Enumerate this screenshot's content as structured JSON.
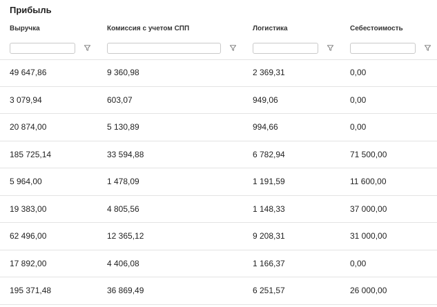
{
  "section": {
    "title": "Прибыль"
  },
  "columns": [
    {
      "label": "Выручка",
      "filter_value": ""
    },
    {
      "label": "Комиссия с учетом СПП",
      "filter_value": ""
    },
    {
      "label": "Логистика",
      "filter_value": ""
    },
    {
      "label": "Себестоимость",
      "filter_value": ""
    }
  ],
  "rows": [
    [
      "49 647,86",
      "9 360,98",
      "2 369,31",
      "0,00"
    ],
    [
      "3 079,94",
      "603,07",
      "949,06",
      "0,00"
    ],
    [
      "20 874,00",
      "5 130,89",
      "994,66",
      "0,00"
    ],
    [
      "185 725,14",
      "33 594,88",
      "6 782,94",
      "71 500,00"
    ],
    [
      "5 964,00",
      "1 478,09",
      "1 191,59",
      "11 600,00"
    ],
    [
      "19 383,00",
      "4 805,56",
      "1 148,33",
      "37 000,00"
    ],
    [
      "62 496,00",
      "12 365,12",
      "9 208,31",
      "31 000,00"
    ],
    [
      "17 892,00",
      "4 406,08",
      "1 166,37",
      "0,00"
    ],
    [
      "195 371,48",
      "36 869,49",
      "6 251,57",
      "26 000,00"
    ]
  ],
  "icons": {
    "filter": "filter-funnel-icon"
  }
}
